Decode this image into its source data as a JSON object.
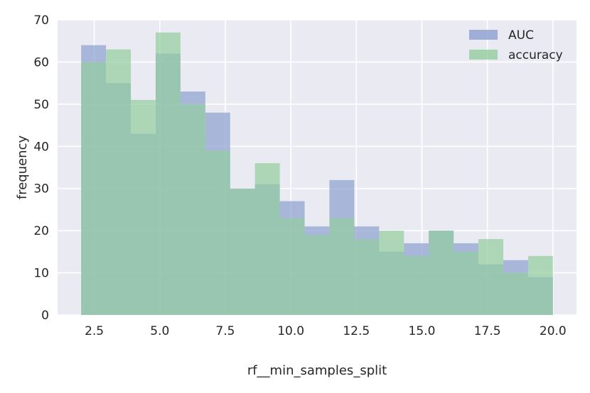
{
  "chart_data": {
    "type": "histogram",
    "xlabel": "rf__min_samples_split",
    "ylabel": "frequency",
    "xlim": [
      1.1,
      20.9
    ],
    "ylim": [
      0,
      70
    ],
    "xticks": [
      2.5,
      5.0,
      7.5,
      10.0,
      12.5,
      15.0,
      17.5,
      20.0
    ],
    "xtick_labels": [
      "2.5",
      "5.0",
      "7.5",
      "10.0",
      "12.5",
      "15.0",
      "17.5",
      "20.0"
    ],
    "yticks": [
      0,
      10,
      20,
      30,
      40,
      50,
      60,
      70
    ],
    "ytick_labels": [
      "0",
      "10",
      "20",
      "30",
      "40",
      "50",
      "60",
      "70"
    ],
    "grid": true,
    "legend_position": "top-right",
    "bin_edges": [
      2.0,
      2.947,
      3.895,
      4.842,
      5.789,
      6.737,
      7.684,
      8.632,
      9.579,
      10.526,
      11.474,
      12.421,
      13.368,
      14.316,
      15.263,
      16.211,
      17.158,
      18.105,
      19.053,
      20.0
    ],
    "series": [
      {
        "name": "AUC",
        "color": "#8c9fcf",
        "values": [
          64,
          55,
          43,
          62,
          53,
          48,
          30,
          31,
          27,
          21,
          32,
          21,
          15,
          17,
          20,
          17,
          12,
          13,
          9
        ]
      },
      {
        "name": "accuracy",
        "color": "#93cd9e",
        "values": [
          60,
          63,
          51,
          67,
          50,
          39,
          30,
          36,
          23,
          19,
          23,
          18,
          20,
          14,
          20,
          15,
          18,
          10,
          14
        ]
      }
    ],
    "colors": {
      "background": "#eaeaf2",
      "grid": "#ffffff",
      "overlap": "#7aab99"
    }
  }
}
